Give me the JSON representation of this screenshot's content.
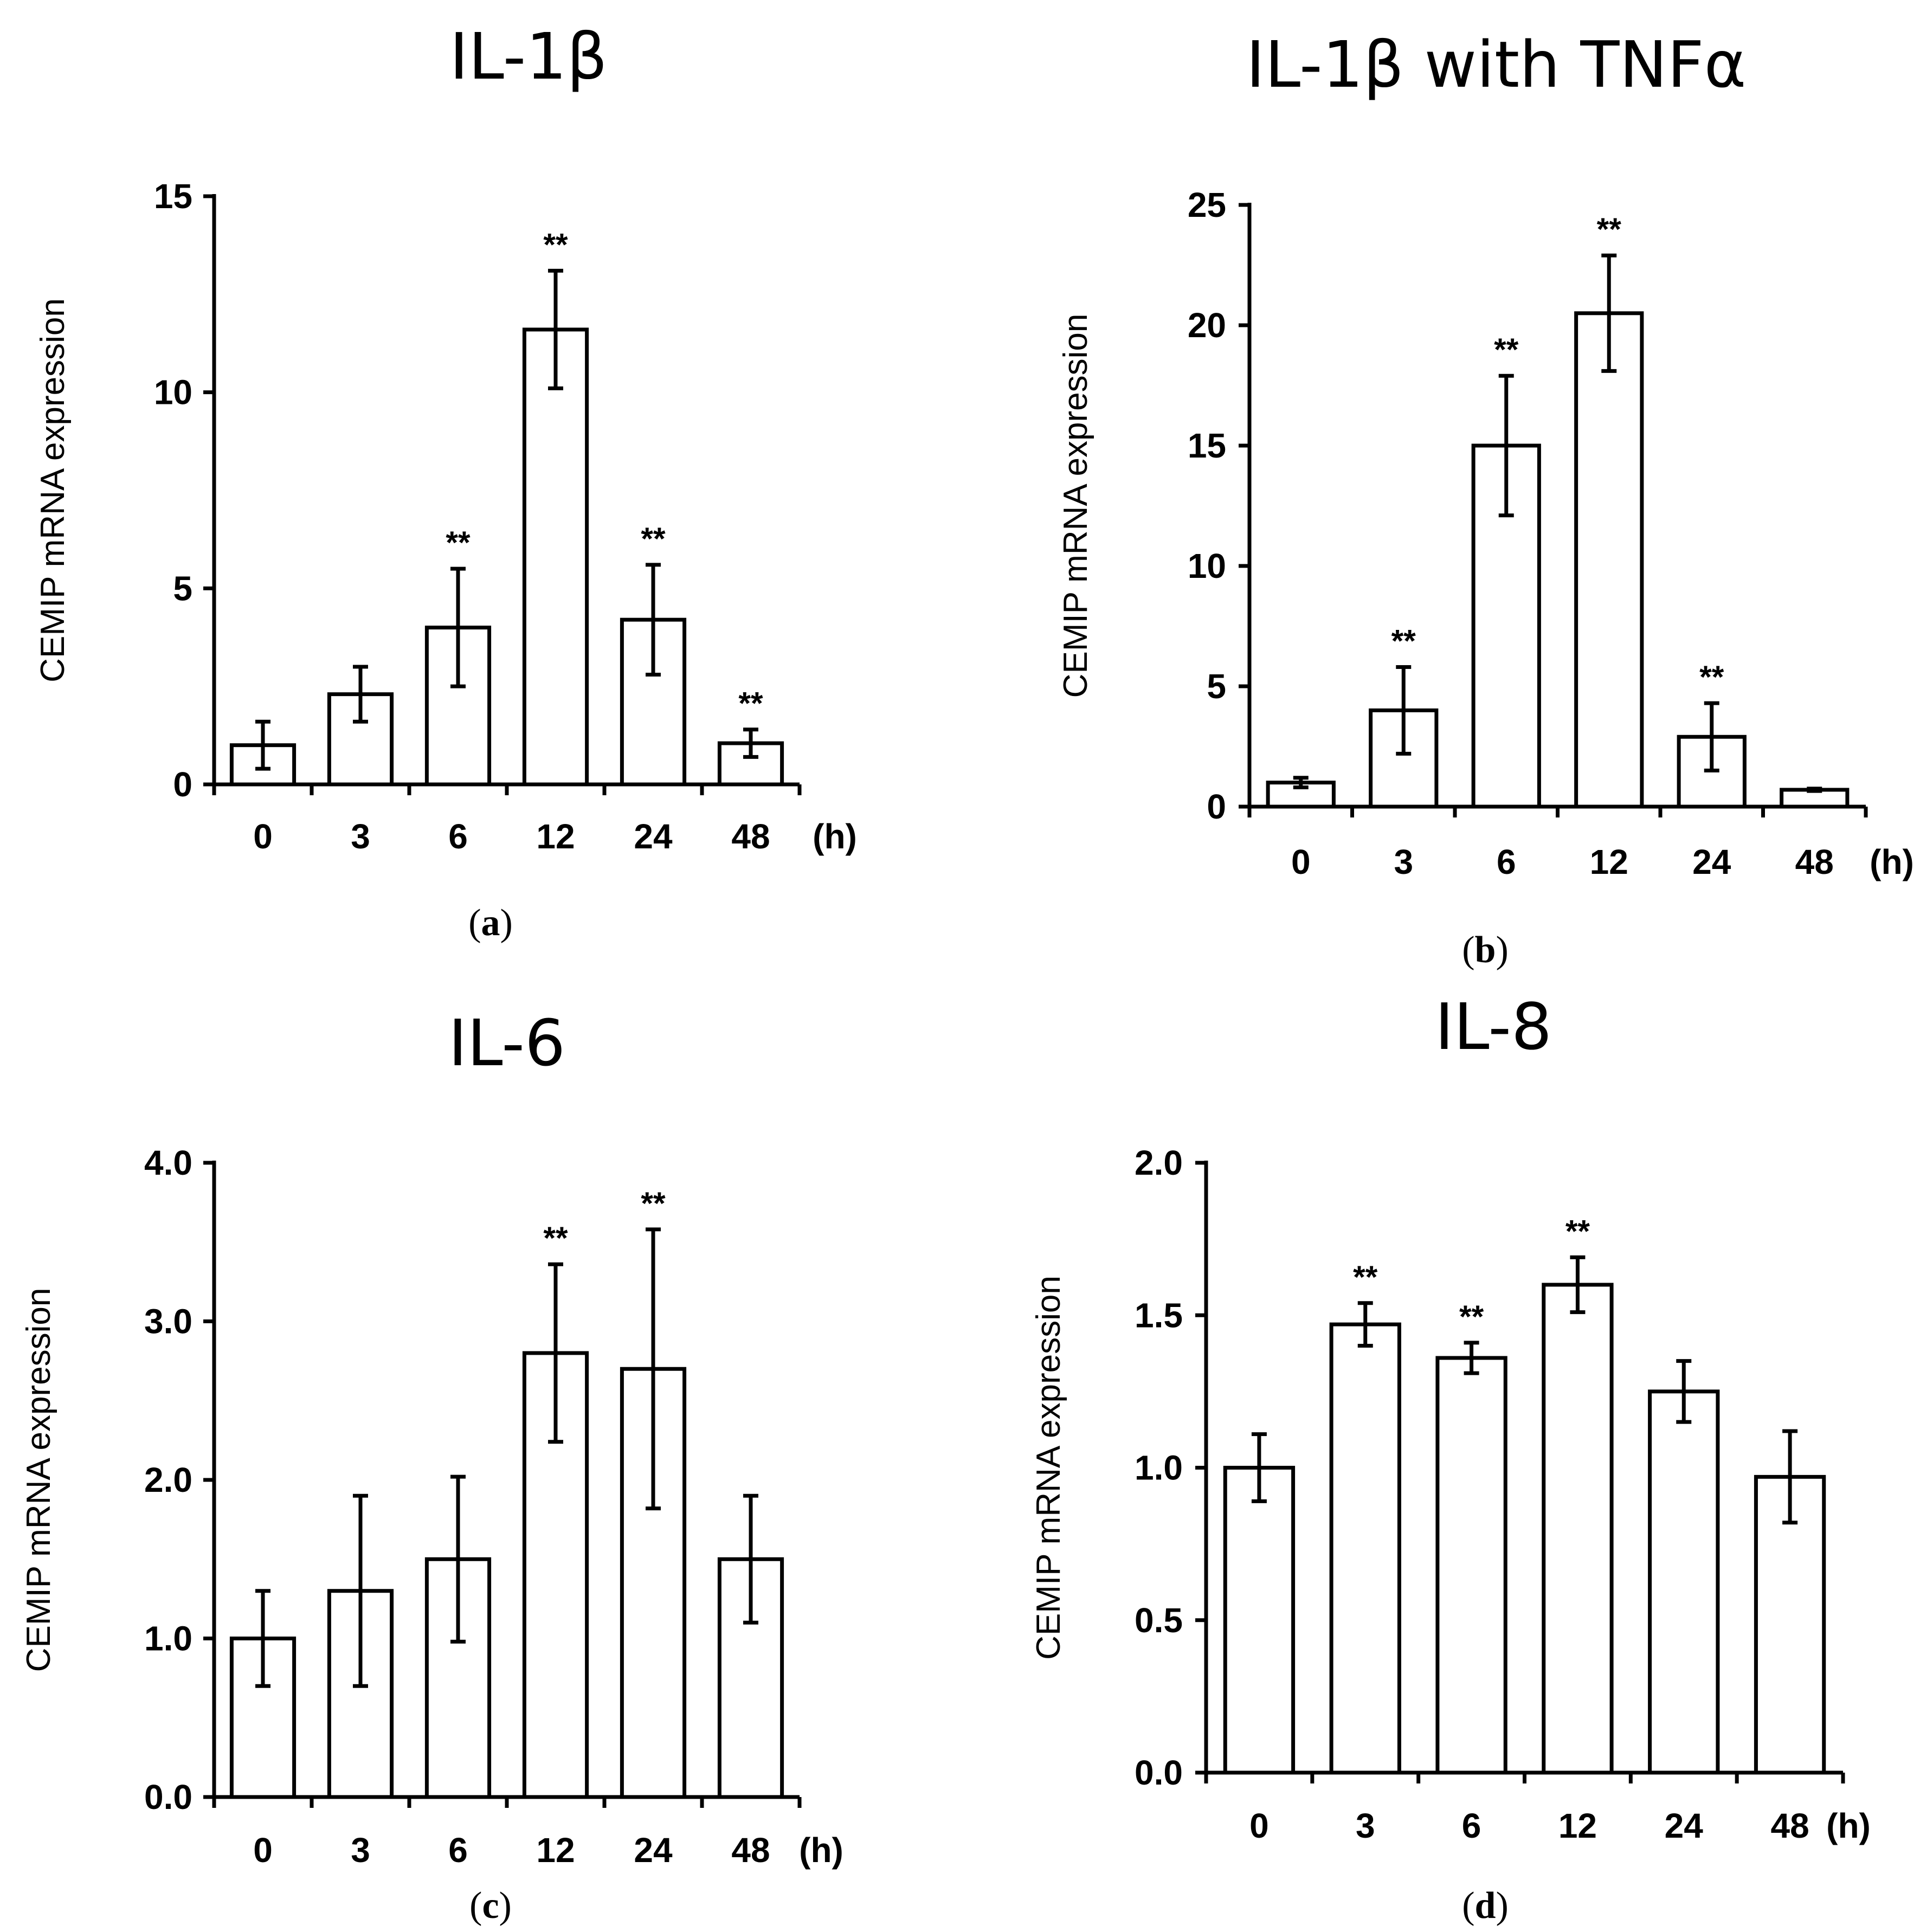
{
  "chart_data": [
    {
      "type": "bar",
      "title": "IL-1β",
      "panel_label": "(a)",
      "ylabel": "CEMIP mRNA expression",
      "categories": [
        "0",
        "3",
        "6",
        "12",
        "24",
        "48"
      ],
      "x_unit": "(h)",
      "values": [
        1.0,
        2.3,
        4.0,
        11.6,
        4.2,
        1.05
      ],
      "errors": [
        0.6,
        0.7,
        1.5,
        1.5,
        1.4,
        0.35
      ],
      "significance": [
        "",
        "",
        "**",
        "**",
        "**",
        "**"
      ],
      "ylim": [
        0,
        15
      ],
      "yticks": [
        0,
        5,
        10,
        15
      ],
      "ytick_labels": [
        "0",
        "5",
        "10",
        "15"
      ]
    },
    {
      "type": "bar",
      "title": "IL-1β with TNFα",
      "panel_label": "(b)",
      "ylabel": "CEMIP mRNA expression",
      "categories": [
        "0",
        "3",
        "6",
        "12",
        "24",
        "48"
      ],
      "x_unit": "(h)",
      "values": [
        1.0,
        4.0,
        15.0,
        20.5,
        2.9,
        0.7
      ],
      "errors": [
        0.2,
        1.8,
        2.9,
        2.4,
        1.4,
        0.05
      ],
      "significance": [
        "",
        "**",
        "**",
        "**",
        "**",
        ""
      ],
      "ylim": [
        0,
        25
      ],
      "yticks": [
        0,
        5,
        10,
        15,
        20,
        25
      ],
      "ytick_labels": [
        "0",
        "5",
        "10",
        "15",
        "20",
        "25"
      ]
    },
    {
      "type": "bar",
      "title": "IL-6",
      "panel_label": "(c)",
      "ylabel": "CEMIP mRNA expression",
      "categories": [
        "0",
        "3",
        "6",
        "12",
        "24",
        "48"
      ],
      "x_unit": "(h)",
      "values": [
        1.0,
        1.3,
        1.5,
        2.8,
        2.7,
        1.5
      ],
      "errors": [
        0.3,
        0.6,
        0.52,
        0.56,
        0.88,
        0.4
      ],
      "significance": [
        "",
        "",
        "",
        "**",
        "**",
        ""
      ],
      "ylim": [
        0,
        4
      ],
      "yticks": [
        0,
        1,
        2,
        3,
        4
      ],
      "ytick_labels": [
        "0.0",
        "1.0",
        "2.0",
        "3.0",
        "4.0"
      ]
    },
    {
      "type": "bar",
      "title": "IL-8",
      "panel_label": "(d)",
      "ylabel": "CEMIP mRNA expression",
      "categories": [
        "0",
        "3",
        "6",
        "12",
        "24",
        "48"
      ],
      "x_unit": "(h)",
      "values": [
        1.0,
        1.47,
        1.36,
        1.6,
        1.25,
        0.97
      ],
      "errors": [
        0.11,
        0.07,
        0.05,
        0.09,
        0.1,
        0.15
      ],
      "significance": [
        "",
        "**",
        "**",
        "**",
        "",
        ""
      ],
      "ylim": [
        0,
        2
      ],
      "yticks": [
        0,
        0.5,
        1.0,
        1.5,
        2.0
      ],
      "ytick_labels": [
        "0.0",
        "0.5",
        "1.0",
        "1.5",
        "2.0"
      ]
    }
  ]
}
